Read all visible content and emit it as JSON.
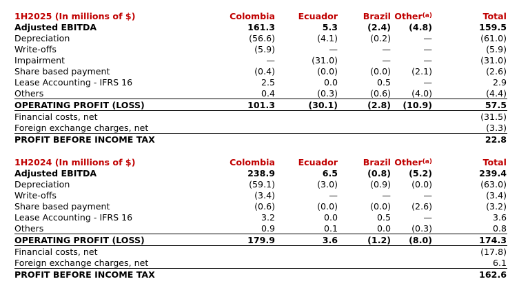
{
  "columns": {
    "colombia": "Colombia",
    "ecuador": "Ecuador",
    "brazil": "Brazil",
    "other": "Other",
    "other_note": "(a)",
    "total": "Total"
  },
  "sections": [
    {
      "title": "1H2025 (In millions of $)",
      "rows": [
        {
          "label": "Adjusted EBITDA",
          "colombia": "161.3",
          "ecuador": "5.3",
          "brazil": "(2.4)",
          "other": "(4.8)",
          "total": "159.5"
        },
        {
          "label": "Depreciation",
          "colombia": "(56.6)",
          "ecuador": "(4.1)",
          "brazil": "(0.2)",
          "other": "—",
          "total": "(61.0)"
        },
        {
          "label": "Write-offs",
          "colombia": "(5.9)",
          "ecuador": "—",
          "brazil": "—",
          "other": "—",
          "total": "(5.9)"
        },
        {
          "label": "Impairment",
          "colombia": "—",
          "ecuador": "(31.0)",
          "brazil": "—",
          "other": "—",
          "total": "(31.0)"
        },
        {
          "label": "Share based payment",
          "colombia": "(0.4)",
          "ecuador": "(0.0)",
          "brazil": "(0.0)",
          "other": "(2.1)",
          "total": "(2.6)"
        },
        {
          "label": "Lease Accounting - IFRS 16",
          "colombia": "2.5",
          "ecuador": "0.0",
          "brazil": "0.5",
          "other": "—",
          "total": "2.9"
        },
        {
          "label": "Others",
          "colombia": "0.4",
          "ecuador": "(0.3)",
          "brazil": "(0.6)",
          "other": "(4.0)",
          "total": "(4.4)"
        }
      ],
      "operating": {
        "label": "OPERATING PROFIT (LOSS)",
        "colombia": "101.3",
        "ecuador": "(30.1)",
        "brazil": "(2.8)",
        "other": "(10.9)",
        "total": "57.5"
      },
      "financial": {
        "label": "Financial costs, net",
        "total": "(31.5)"
      },
      "fx": {
        "label": "Foreign exchange charges, net",
        "total": "(3.3)"
      },
      "pbt": {
        "label": "PROFIT BEFORE INCOME TAX",
        "total": "22.8"
      }
    },
    {
      "title": "1H2024 (In millions of $)",
      "rows": [
        {
          "label": "Adjusted EBITDA",
          "colombia": "238.9",
          "ecuador": "6.5",
          "brazil": "(0.8)",
          "other": "(5.2)",
          "total": "239.4"
        },
        {
          "label": "Depreciation",
          "colombia": "(59.1)",
          "ecuador": "(3.0)",
          "brazil": "(0.9)",
          "other": "(0.0)",
          "total": "(63.0)"
        },
        {
          "label": "Write-offs",
          "colombia": "(3.4)",
          "ecuador": "—",
          "brazil": "—",
          "other": "—",
          "total": "(3.4)"
        },
        {
          "label": "Share based payment",
          "colombia": "(0.6)",
          "ecuador": "(0.0)",
          "brazil": "(0.0)",
          "other": "(2.6)",
          "total": "(3.2)"
        },
        {
          "label": "Lease Accounting - IFRS 16",
          "colombia": "3.2",
          "ecuador": "0.0",
          "brazil": "0.5",
          "other": "—",
          "total": "3.6"
        },
        {
          "label": "Others",
          "colombia": "0.9",
          "ecuador": "0.1",
          "brazil": "0.0",
          "other": "(0.3)",
          "total": "0.8"
        }
      ],
      "operating": {
        "label": "OPERATING PROFIT (LOSS)",
        "colombia": "179.9",
        "ecuador": "3.6",
        "brazil": "(1.2)",
        "other": "(8.0)",
        "total": "174.3"
      },
      "financial": {
        "label": "Financial costs, net",
        "total": "(17.8)"
      },
      "fx": {
        "label": "Foreign exchange charges, net",
        "total": "6.1"
      },
      "pbt": {
        "label": "PROFIT BEFORE INCOME TAX",
        "total": "162.6"
      }
    }
  ]
}
